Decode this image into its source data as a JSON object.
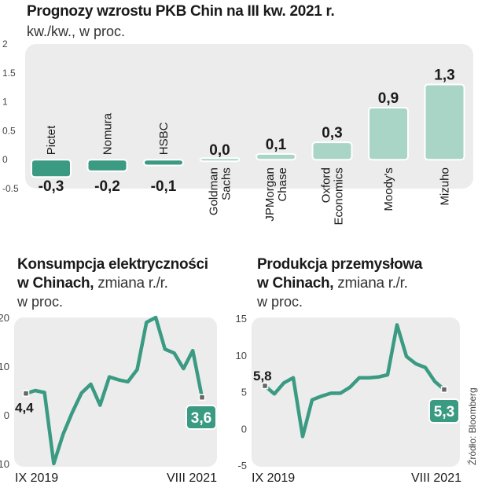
{
  "chart_data": [
    {
      "type": "bar",
      "title": "Prognozy wzrostu PKB Chin na III kw. 2021 r.",
      "unit_label": "kw./kw., w proc.",
      "categories": [
        "Pictet",
        "Nomura",
        "HSBC",
        "Goldman Sachs",
        "JPMorgan Chase",
        "Oxford Economics",
        "Moody's",
        "Mizuho"
      ],
      "category_lines": [
        [
          "Pictet"
        ],
        [
          "Nomura"
        ],
        [
          "HSBC"
        ],
        [
          "Goldman",
          "Sachs"
        ],
        [
          "JPMorgan",
          "Chase"
        ],
        [
          "Oxford",
          "Economics"
        ],
        [
          "Moody's"
        ],
        [
          "Mizuho"
        ]
      ],
      "values": [
        -0.3,
        -0.2,
        -0.1,
        0.0,
        0.1,
        0.3,
        0.9,
        1.3
      ],
      "value_labels": [
        "-0,3",
        "-0,2",
        "-0,1",
        "0,0",
        "0,1",
        "0,3",
        "0,9",
        "1,3"
      ],
      "ylim": [
        -0.5,
        2
      ],
      "yticks": [
        -0.5,
        0,
        0.5,
        1,
        1.5,
        2
      ],
      "ytick_labels": [
        "-0.5",
        "0",
        "0.5",
        "1",
        "1.5",
        "2"
      ],
      "negative_color": "#3a9a82",
      "positive_color": "#a8d5c6"
    },
    {
      "type": "line",
      "title_bold_line1": "Konsumpcja elektryczności",
      "title_bold_line2": "w Chinach,",
      "title_normal": "zmiana r./r.",
      "unit_label": "w proc.",
      "values": [
        4.4,
        5.0,
        4.6,
        -10.0,
        -4.0,
        0.5,
        4.5,
        6.3,
        2.0,
        7.8,
        7.2,
        6.8,
        9.3,
        19.0,
        20.0,
        13.5,
        12.7,
        9.5,
        13.2,
        3.6
      ],
      "start_label": "4,4",
      "end_label": "3,6",
      "x_start_label": "IX 2019",
      "x_end_label": "VIII 2021",
      "ylim": [
        -10,
        20
      ],
      "yticks": [
        -10,
        0,
        10,
        20
      ],
      "ytick_labels": [
        "-10",
        "0",
        "10",
        "20"
      ],
      "line_color": "#3a9a82"
    },
    {
      "type": "line",
      "title_bold_line1": "Produkcja przemysłowa",
      "title_bold_line2": "w Chinach,",
      "title_normal": "zmiana r./r.",
      "unit_label": "w proc.",
      "values": [
        5.8,
        4.7,
        6.2,
        6.9,
        -1.1,
        3.9,
        4.4,
        4.8,
        4.8,
        5.6,
        6.9,
        6.9,
        7.0,
        7.3,
        14.1,
        9.8,
        8.8,
        8.3,
        6.4,
        5.3
      ],
      "start_label": "5,8",
      "end_label": "5,3",
      "x_start_label": "IX 2019",
      "x_end_label": "VIII 2021",
      "ylim": [
        -5,
        15
      ],
      "yticks": [
        -5,
        0,
        5,
        10,
        15
      ],
      "ytick_labels": [
        "-5",
        "0",
        "5",
        "10",
        "15"
      ],
      "line_color": "#3a9a82"
    }
  ],
  "source": "Źródło: Bloomberg",
  "colors": {
    "panel": "#ececec",
    "accent": "#3a9a82",
    "accent_light": "#a8d5c6"
  }
}
